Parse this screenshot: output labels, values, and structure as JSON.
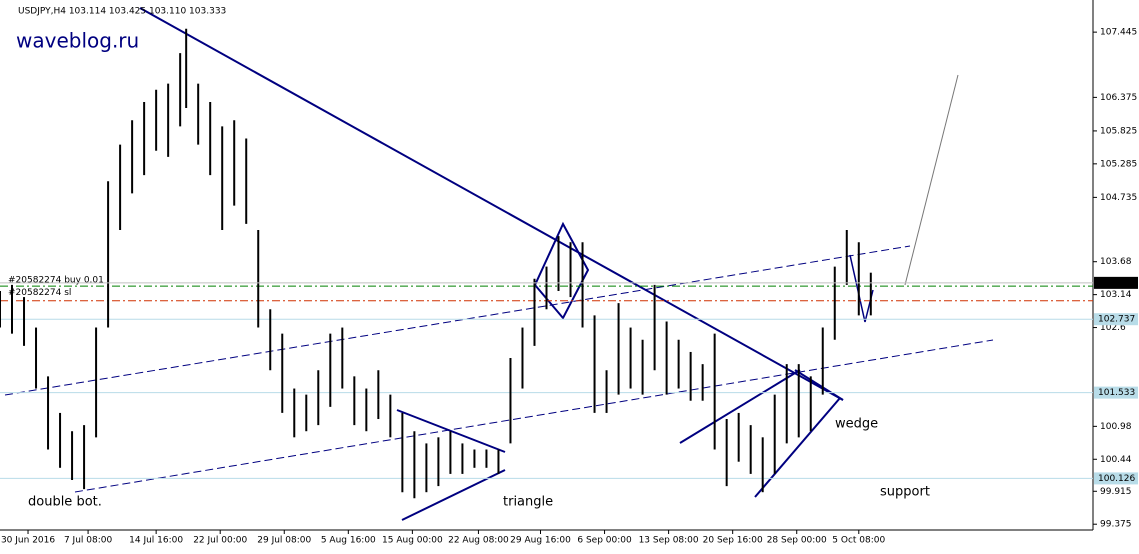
{
  "chart_data": {
    "type": "ohlc",
    "title": "USDJPY,H4  103.114 103.425 103.110 103.333",
    "watermark": "waveblog.ru",
    "color": "#000000",
    "ylim": [
      99.28,
      107.89
    ],
    "yticks": [
      107.445,
      106.375,
      105.825,
      105.285,
      104.735,
      103.68,
      103.14,
      102.6,
      100.98,
      100.44,
      99.915,
      99.375
    ],
    "xlim": [
      0,
      546
    ],
    "xticks": [
      {
        "value": 14,
        "label": "30 Jun 2016"
      },
      {
        "value": 44,
        "label": "7 Jul 08:00"
      },
      {
        "value": 78,
        "label": "14 Jul 16:00"
      },
      {
        "value": 110,
        "label": "22 Jul 00:00"
      },
      {
        "value": 142,
        "label": "29 Jul 08:00"
      },
      {
        "value": 174,
        "label": "5 Aug 16:00"
      },
      {
        "value": 206,
        "label": "15 Aug 00:00"
      },
      {
        "value": 239,
        "label": "22 Aug 08:00"
      },
      {
        "value": 270,
        "label": "29 Aug 16:00"
      },
      {
        "value": 302,
        "label": "6 Sep 00:00"
      },
      {
        "value": 334,
        "label": "13 Sep 08:00"
      },
      {
        "value": 366,
        "label": "20 Sep 16:00"
      },
      {
        "value": 398,
        "label": "28 Sep 00:00"
      },
      {
        "value": 429,
        "label": "5 Oct 08:00"
      }
    ],
    "x": [
      0,
      6,
      12,
      18,
      24,
      30,
      36,
      42,
      48,
      54,
      60,
      66,
      72,
      78,
      84,
      90,
      93,
      99,
      105,
      111,
      117,
      123,
      129,
      135,
      141,
      147,
      153,
      159,
      165,
      171,
      177,
      183,
      189,
      195,
      201,
      207,
      213,
      219,
      225,
      231,
      237,
      243,
      249,
      255,
      261,
      267,
      273,
      279,
      285,
      291,
      297,
      303,
      309,
      315,
      321,
      327,
      333,
      339,
      345,
      351,
      357,
      363,
      369,
      375,
      381,
      387,
      393,
      399,
      405,
      411,
      417,
      423,
      429,
      435
    ],
    "high": [
      103.2,
      103.3,
      103.1,
      102.6,
      101.8,
      101.2,
      100.9,
      101.0,
      102.6,
      105.0,
      105.6,
      106.0,
      106.3,
      106.5,
      106.6,
      107.1,
      107.5,
      106.6,
      106.3,
      105.9,
      106.0,
      105.7,
      104.2,
      102.9,
      102.5,
      101.6,
      101.5,
      101.9,
      102.5,
      102.6,
      101.8,
      101.6,
      101.9,
      101.5,
      101.2,
      100.9,
      100.7,
      100.8,
      100.9,
      100.7,
      100.6,
      100.6,
      100.6,
      102.1,
      102.6,
      103.4,
      103.6,
      104.1,
      104.0,
      104.0,
      102.8,
      101.9,
      103.0,
      102.6,
      102.4,
      103.3,
      102.7,
      102.4,
      102.2,
      102.0,
      102.5,
      101.1,
      101.2,
      101.0,
      100.8,
      101.5,
      102.0,
      102.0,
      101.8,
      102.6,
      103.6,
      104.2,
      104.0,
      103.5
    ],
    "low": [
      102.6,
      102.5,
      102.3,
      101.6,
      100.6,
      100.3,
      100.1,
      99.95,
      100.8,
      102.6,
      104.2,
      104.8,
      105.1,
      105.5,
      105.4,
      105.9,
      106.2,
      105.6,
      105.1,
      104.2,
      104.6,
      104.3,
      102.6,
      101.9,
      101.2,
      100.8,
      100.9,
      101.0,
      101.3,
      101.6,
      101.0,
      100.9,
      101.1,
      100.8,
      99.9,
      99.8,
      99.9,
      100.0,
      100.2,
      100.2,
      100.3,
      100.3,
      100.2,
      100.7,
      101.6,
      102.3,
      102.9,
      103.2,
      103.1,
      102.6,
      101.2,
      101.2,
      101.5,
      101.6,
      101.5,
      101.9,
      101.5,
      101.6,
      101.4,
      101.4,
      100.6,
      100.0,
      100.4,
      100.2,
      99.9,
      100.2,
      100.7,
      100.8,
      100.9,
      101.5,
      102.4,
      103.3,
      102.8,
      102.8
    ],
    "current_price": 103.333,
    "orders": [
      {
        "label": "#20582274 buy 0.01",
        "value": 103.28,
        "color": "#008000"
      },
      {
        "label": "#20582274 sl",
        "value": 103.04,
        "color": "#d03000"
      }
    ],
    "levels": [
      102.737,
      101.533,
      100.126
    ],
    "annotations": [
      "double bot.",
      "triangle",
      "wedge",
      "support"
    ]
  }
}
